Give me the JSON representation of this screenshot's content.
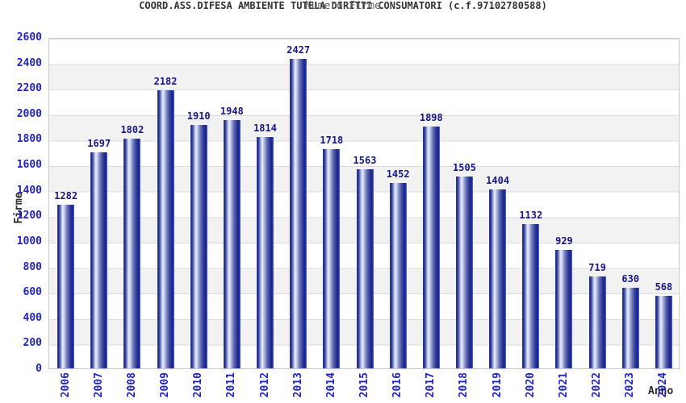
{
  "header": {
    "title": "COORD.ASS.DIFESA AMBIENTE TUTELA DIRITTI CONSUMATORI (c.f.97102780588)",
    "subtitle": "Numero Firme"
  },
  "chart_data": {
    "type": "bar",
    "title": "COORD.ASS.DIFESA AMBIENTE TUTELA DIRITTI CONSUMATORI (c.f.97102780588)",
    "subtitle": "Numero Firme",
    "xlabel": "Anno",
    "ylabel": "Firme",
    "categories": [
      "2006",
      "2007",
      "2008",
      "2009",
      "2010",
      "2011",
      "2012",
      "2013",
      "2014",
      "2015",
      "2016",
      "2017",
      "2018",
      "2019",
      "2020",
      "2021",
      "2022",
      "2023",
      "2024"
    ],
    "values": [
      1282,
      1697,
      1802,
      2182,
      1910,
      1948,
      1814,
      2427,
      1718,
      1563,
      1452,
      1898,
      1505,
      1404,
      1132,
      929,
      719,
      630,
      568
    ],
    "ylim": [
      0,
      2600
    ],
    "ytick_step": 200,
    "yticks": [
      "0",
      "200",
      "400",
      "600",
      "800",
      "1000",
      "1200",
      "1400",
      "1600",
      "1800",
      "2000",
      "2200",
      "2400",
      "2600"
    ],
    "grid": true,
    "legend": null,
    "bands_alternating": true,
    "value_labels_shown": true
  },
  "colors": {
    "bar_dark": "#1d2384",
    "bar_highlight": "#e9ecf8",
    "bar_right_edge": "#3e59e6",
    "tick_label": "#2222cc",
    "value_label": "#171788",
    "title": "#333333",
    "subtitle": "#606060",
    "axis_title": "#2b2b2b",
    "gridline": "#dcdcdc",
    "band_gray": "#f2f2f2",
    "plot_border": "#c8c8c8",
    "background": "#ffffff"
  }
}
